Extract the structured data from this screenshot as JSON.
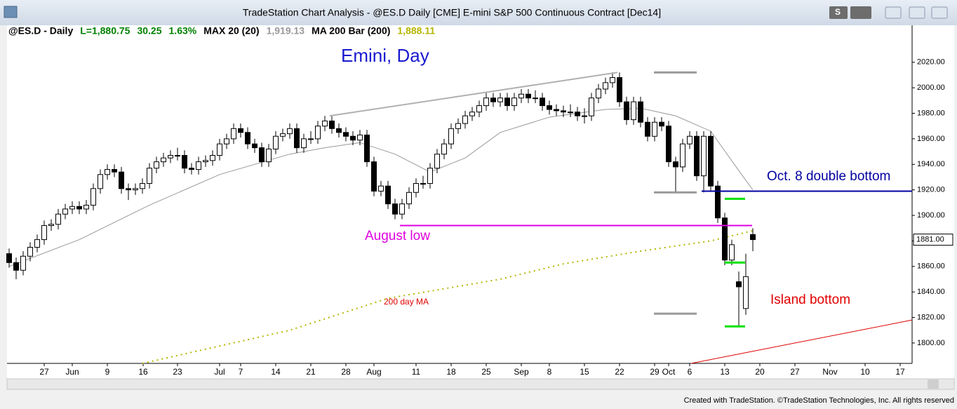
{
  "window": {
    "title": "TradeStation Chart Analysis - @ES.D Daily [CME] E-mini S&P 500 Continuous Contract [Dec14]",
    "button_label": "S",
    "footer": "Created with TradeStation. ©TradeStation Technologies, Inc. All rights reserved"
  },
  "chart_data": {
    "type": "candlestick",
    "legend_items": [
      {
        "text": "@ES.D - Daily",
        "color": "#000000"
      },
      {
        "text": "L=1,880.75",
        "color": "#008000"
      },
      {
        "text": "30.25",
        "color": "#008000"
      },
      {
        "text": "1.63%",
        "color": "#008000"
      },
      {
        "text": "MAX 20 (20)",
        "color": "#000000"
      },
      {
        "text": "1,919.13",
        "color": "#999999"
      },
      {
        "text": "MA 200 Bar (200)",
        "color": "#000000"
      },
      {
        "text": "1,888.11",
        "color": "#b5b500"
      }
    ],
    "title": "Emini, Day",
    "annotations": [
      "Oct. 8 double bottom",
      "August low",
      "200 day MA",
      "Island bottom"
    ],
    "open": [
      1870,
      1863,
      1857,
      1868,
      1875,
      1881,
      1892,
      1893,
      1901,
      1905,
      1907,
      1905,
      1908,
      1921,
      1932,
      1936,
      1934,
      1921,
      1920,
      1921,
      1925,
      1937,
      1942,
      1945,
      1947,
      1947,
      1937,
      1936,
      1942,
      1943,
      1947,
      1956,
      1960,
      1968,
      1965,
      1956,
      1953,
      1942,
      1952,
      1962,
      1964,
      1968,
      1953,
      1960,
      1960,
      1970,
      1974,
      1968,
      1965,
      1962,
      1959,
      1963,
      1942,
      1919,
      1923,
      1909,
      1901,
      1909,
      1918,
      1925,
      1925,
      1937,
      1948,
      1956,
      1968,
      1972,
      1978,
      1981,
      1986,
      1992,
      1989,
      1992,
      1986,
      1992,
      1995,
      1992,
      1992,
      1986,
      1983,
      1982,
      1981,
      1981,
      1978,
      1978,
      1992,
      1999,
      2004,
      2008,
      1989,
      1975,
      1989,
      1973,
      1962,
      1973,
      1970,
      1942,
      1938,
      1956,
      1962,
      1931,
      1962,
      1923,
      1898,
      1865,
      1848,
      1827,
      1885
    ],
    "high": [
      1874,
      1867,
      1872,
      1879,
      1885,
      1896,
      1897,
      1905,
      1909,
      1911,
      1911,
      1912,
      1925,
      1936,
      1940,
      1940,
      1938,
      1925,
      1925,
      1929,
      1941,
      1946,
      1949,
      1951,
      1953,
      1951,
      1941,
      1946,
      1947,
      1951,
      1960,
      1964,
      1972,
      1972,
      1969,
      1960,
      1957,
      1956,
      1966,
      1968,
      1972,
      1972,
      1964,
      1966,
      1974,
      1978,
      1978,
      1972,
      1969,
      1966,
      1967,
      1967,
      1946,
      1927,
      1927,
      1913,
      1913,
      1922,
      1929,
      1931,
      1941,
      1952,
      1960,
      1972,
      1976,
      1982,
      1985,
      1990,
      1996,
      1996,
      1996,
      1996,
      1996,
      1999,
      1999,
      1998,
      1996,
      1990,
      1987,
      1986,
      1987,
      1985,
      1984,
      1996,
      2003,
      2008,
      2012,
      2012,
      1993,
      1993,
      1993,
      1977,
      1977,
      1977,
      1974,
      1946,
      1960,
      1966,
      1966,
      1966,
      1966,
      1927,
      1902,
      1881,
      1856,
      1870,
      1890
    ],
    "low": [
      1859,
      1850,
      1853,
      1864,
      1871,
      1877,
      1888,
      1889,
      1897,
      1901,
      1901,
      1901,
      1904,
      1917,
      1928,
      1930,
      1917,
      1912,
      1916,
      1917,
      1921,
      1933,
      1938,
      1941,
      1943,
      1933,
      1932,
      1932,
      1938,
      1939,
      1943,
      1952,
      1956,
      1961,
      1952,
      1949,
      1938,
      1938,
      1948,
      1958,
      1960,
      1949,
      1949,
      1956,
      1956,
      1966,
      1964,
      1961,
      1958,
      1955,
      1955,
      1938,
      1915,
      1915,
      1905,
      1897,
      1897,
      1905,
      1914,
      1921,
      1921,
      1933,
      1944,
      1952,
      1964,
      1968,
      1974,
      1977,
      1982,
      1985,
      1985,
      1982,
      1982,
      1988,
      1988,
      1988,
      1982,
      1979,
      1978,
      1977,
      1977,
      1974,
      1972,
      1974,
      1988,
      1995,
      2000,
      1985,
      1971,
      1971,
      1969,
      1958,
      1958,
      1966,
      1938,
      1918,
      1934,
      1952,
      1927,
      1918,
      1919,
      1894,
      1861,
      1861,
      1813,
      1822,
      1872
    ],
    "close": [
      1863,
      1857,
      1868,
      1875,
      1881,
      1892,
      1893,
      1901,
      1905,
      1907,
      1905,
      1908,
      1921,
      1932,
      1936,
      1934,
      1921,
      1920,
      1921,
      1925,
      1937,
      1942,
      1945,
      1947,
      1947,
      1937,
      1936,
      1942,
      1943,
      1947,
      1956,
      1960,
      1968,
      1965,
      1956,
      1953,
      1942,
      1952,
      1962,
      1964,
      1968,
      1953,
      1960,
      1960,
      1970,
      1974,
      1968,
      1965,
      1962,
      1959,
      1963,
      1942,
      1919,
      1923,
      1909,
      1901,
      1909,
      1918,
      1925,
      1925,
      1937,
      1948,
      1956,
      1968,
      1972,
      1978,
      1981,
      1986,
      1992,
      1989,
      1992,
      1986,
      1992,
      1995,
      1992,
      1992,
      1986,
      1983,
      1982,
      1981,
      1981,
      1978,
      1978,
      1992,
      1999,
      2004,
      2008,
      1989,
      1975,
      1989,
      1973,
      1962,
      1973,
      1970,
      1942,
      1938,
      1956,
      1962,
      1931,
      1962,
      1923,
      1898,
      1865,
      1877,
      1844,
      1852,
      1881
    ],
    "up_color": "#ffffff",
    "down_color": "#000000",
    "overlays": [
      {
        "name": "MAX 20",
        "color": "#999999",
        "dotted": false,
        "x": [
          0,
          10,
          20,
          30,
          40,
          45,
          50,
          55,
          60,
          65,
          70,
          77,
          85,
          90,
          95,
          100,
          104,
          106
        ],
        "values": [
          1860,
          1881,
          1908,
          1932,
          1948,
          1953,
          1957,
          1948,
          1934,
          1945,
          1965,
          1977,
          1983,
          1984,
          1978,
          1966,
          1935,
          1920
        ]
      },
      {
        "name": "MA 200 Bar",
        "color": "#b5b500",
        "dotted": true,
        "x": [
          19,
          40,
          54,
          70,
          79,
          90,
          100,
          106
        ],
        "values": [
          1784,
          1810,
          1835,
          1850,
          1862,
          1872,
          1880,
          1888
        ]
      }
    ],
    "lines": [
      {
        "color": "#b0b0b0",
        "width": 2,
        "x": [
          45.7,
          86.7
        ],
        "y": [
          1978,
          2012
        ]
      },
      {
        "color": "#e00000",
        "width": 1,
        "x": [
          97.2,
          128.7
        ],
        "y": [
          1784,
          1818
        ]
      },
      {
        "color": "#999999",
        "width": 3,
        "x": [
          91.9,
          98
        ],
        "y": [
          2012,
          2012
        ]
      },
      {
        "color": "#999999",
        "width": 3,
        "x": [
          91.9,
          98
        ],
        "y": [
          1918,
          1918
        ]
      },
      {
        "color": "#999999",
        "width": 3,
        "x": [
          91.9,
          98
        ],
        "y": [
          1823,
          1823
        ]
      },
      {
        "color": "#0000a0",
        "width": 2,
        "x": [
          98.7,
          128.7
        ],
        "y": [
          1919,
          1919
        ]
      },
      {
        "color": "#e000e0",
        "width": 2,
        "x": [
          55.7,
          105.9
        ],
        "y": [
          1892,
          1892
        ]
      },
      {
        "color": "#00e000",
        "width": 3,
        "x": [
          102,
          104.9
        ],
        "y": [
          1913,
          1913
        ]
      },
      {
        "color": "#00e000",
        "width": 3,
        "x": [
          102,
          104.9
        ],
        "y": [
          1863,
          1863
        ]
      },
      {
        "color": "#00e000",
        "width": 3,
        "x": [
          102,
          104.9
        ],
        "y": [
          1813,
          1813
        ]
      }
    ],
    "last_price": {
      "value": 1881,
      "label": "1881.00"
    },
    "xlim": [
      -0.3,
      128.7
    ],
    "xticks": [
      {
        "value": 5,
        "label": "27"
      },
      {
        "value": 9,
        "label": "Jun"
      },
      {
        "value": 14,
        "label": "9"
      },
      {
        "value": 19.1,
        "label": "16"
      },
      {
        "value": 24,
        "label": "23"
      },
      {
        "value": 30,
        "label": "Jul"
      },
      {
        "value": 33,
        "label": "7"
      },
      {
        "value": 38,
        "label": "14"
      },
      {
        "value": 43,
        "label": "21"
      },
      {
        "value": 48,
        "label": "28"
      },
      {
        "value": 52,
        "label": "Aug"
      },
      {
        "value": 58,
        "label": "11"
      },
      {
        "value": 63,
        "label": "18"
      },
      {
        "value": 68,
        "label": "25"
      },
      {
        "value": 73,
        "label": "Sep"
      },
      {
        "value": 77,
        "label": "8"
      },
      {
        "value": 82,
        "label": "15"
      },
      {
        "value": 87,
        "label": "22"
      },
      {
        "value": 92,
        "label": "29"
      },
      {
        "value": 94,
        "label": "Oct"
      },
      {
        "value": 97,
        "label": "6"
      },
      {
        "value": 102,
        "label": "13"
      },
      {
        "value": 107,
        "label": "20"
      },
      {
        "value": 112,
        "label": "27"
      },
      {
        "value": 117,
        "label": "Nov"
      },
      {
        "value": 122,
        "label": "10"
      },
      {
        "value": 127,
        "label": "17"
      }
    ],
    "ylim": [
      1784,
      2049
    ],
    "yticks": [
      {
        "value": 1800,
        "label": "1800.00"
      },
      {
        "value": 1820,
        "label": "1820.00"
      },
      {
        "value": 1840,
        "label": "1840.00"
      },
      {
        "value": 1860,
        "label": "1860.00"
      },
      {
        "value": 1880,
        "label": "1880.00"
      },
      {
        "value": 1900,
        "label": "1900.00"
      },
      {
        "value": 1920,
        "label": "1920.00"
      },
      {
        "value": 1940,
        "label": "1940.00"
      },
      {
        "value": 1960,
        "label": "1960.00"
      },
      {
        "value": 1980,
        "label": "1980.00"
      },
      {
        "value": 2000,
        "label": "2000.00"
      },
      {
        "value": 2020,
        "label": "2020.00"
      }
    ]
  }
}
